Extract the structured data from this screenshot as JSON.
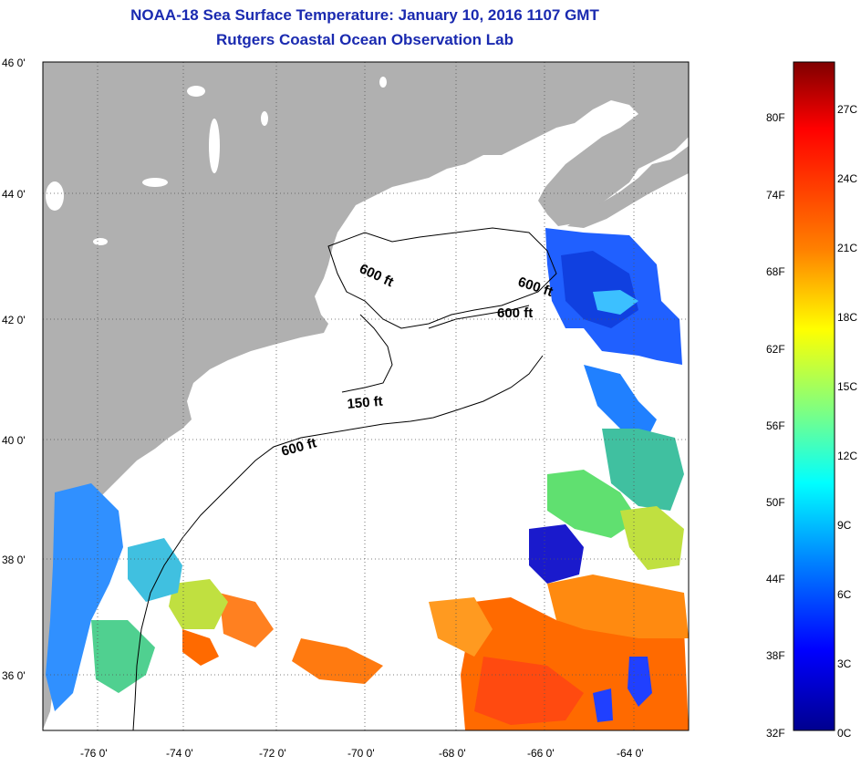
{
  "title": {
    "line1": "NOAA-18 Sea Surface Temperature:  January 10, 2016 1107 GMT",
    "line2": "Rutgers Coastal Ocean Observation Lab"
  },
  "map": {
    "lat_labels": [
      "46 0'",
      "44 0'",
      "42 0'",
      "40 0'",
      "38 0'",
      "36 0'"
    ],
    "lon_labels": [
      "-76 0'",
      "-74 0'",
      "-72 0'",
      "-70 0'",
      "-68 0'",
      "-66 0'",
      "-64 0'"
    ],
    "contour_labels": [
      "600 ft",
      "600 ft",
      "600 ft",
      "150 ft",
      "600 ft"
    ],
    "land_color": "#b0b0b0",
    "ocean_color": "#ffffff",
    "cloud_mask_color": "#ffffff"
  },
  "colorbar": {
    "fahrenheit_labels": [
      "80F",
      "74F",
      "68F",
      "62F",
      "56F",
      "50F",
      "44F",
      "38F",
      "32F"
    ],
    "celsius_labels": [
      "27C",
      "24C",
      "21C",
      "18C",
      "15C",
      "12C",
      "9C",
      "6C",
      "3C",
      "0C"
    ],
    "gradient": [
      "#7f0000",
      "#ff0000",
      "#ff8000",
      "#ffff00",
      "#80ff80",
      "#00ffff",
      "#0080ff",
      "#0000ff",
      "#00008f"
    ]
  }
}
